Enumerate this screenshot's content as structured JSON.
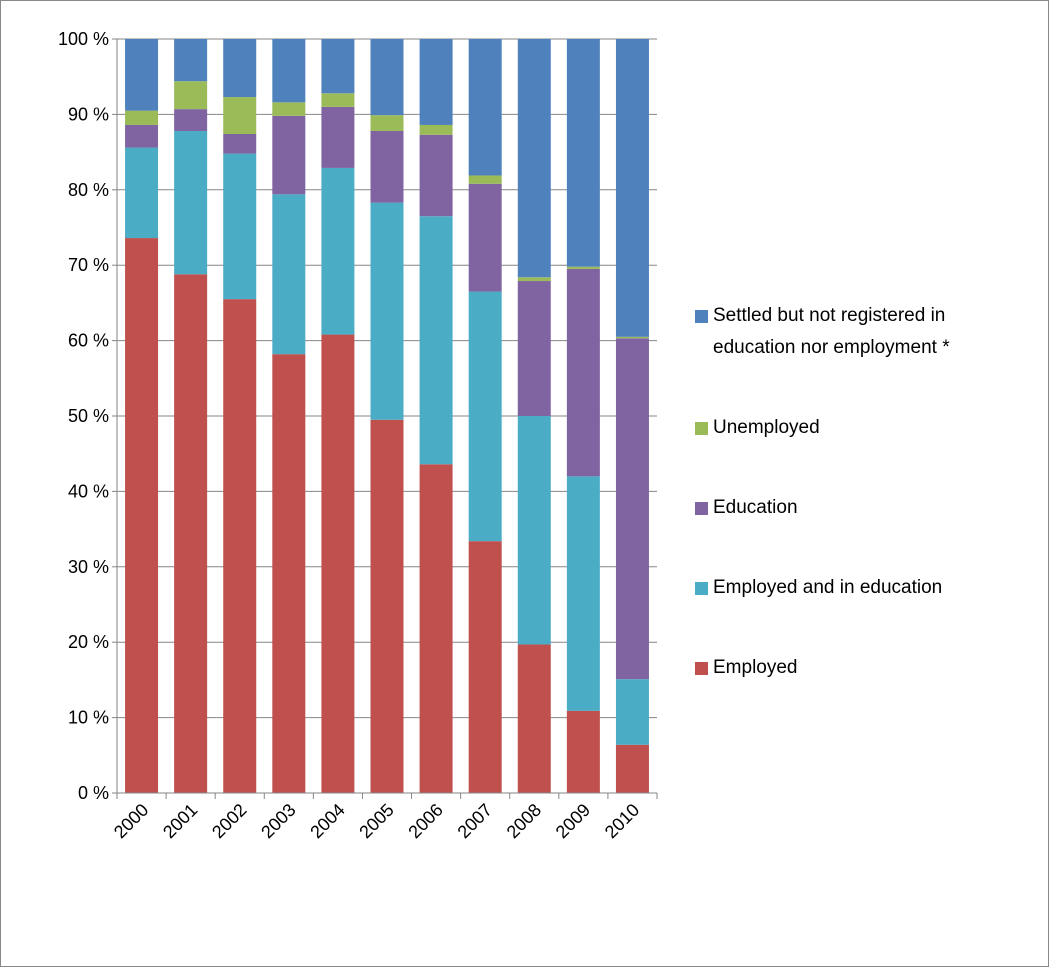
{
  "chart_data": {
    "type": "bar",
    "stacked": true,
    "categories": [
      "2000",
      "2001",
      "2002",
      "2003",
      "2004",
      "2005",
      "2006",
      "2007",
      "2008",
      "2009",
      "2010"
    ],
    "series": [
      {
        "name": "Employed",
        "color": "#c0504d",
        "values": [
          73.6,
          68.8,
          65.5,
          58.2,
          60.8,
          49.5,
          43.6,
          33.4,
          19.7,
          10.9,
          6.4
        ]
      },
      {
        "name": "Employed and in education",
        "color": "#4bacc6",
        "values": [
          12.0,
          19.0,
          19.3,
          21.2,
          22.1,
          28.8,
          32.9,
          33.1,
          30.3,
          31.1,
          8.7
        ]
      },
      {
        "name": "Education",
        "color": "#8064a2",
        "values": [
          3.0,
          2.9,
          2.6,
          10.4,
          8.1,
          9.5,
          10.8,
          14.3,
          17.9,
          27.5,
          45.2
        ]
      },
      {
        "name": "Unemployed",
        "color": "#9bbb59",
        "values": [
          1.9,
          3.7,
          4.9,
          1.8,
          1.8,
          2.1,
          1.3,
          1.1,
          0.5,
          0.3,
          0.2
        ]
      },
      {
        "name": "Settled but not registered in education nor employment *",
        "color": "#4f81bd",
        "values": [
          9.5,
          5.6,
          7.7,
          8.4,
          7.2,
          10.1,
          11.4,
          18.1,
          31.6,
          30.2,
          39.5
        ]
      }
    ],
    "ylim": [
      0,
      100
    ],
    "yticks": [
      {
        "value": 0,
        "label": "0 %"
      },
      {
        "value": 10,
        "label": "10 %"
      },
      {
        "value": 20,
        "label": "20 %"
      },
      {
        "value": 30,
        "label": "30 %"
      },
      {
        "value": 40,
        "label": "40 %"
      },
      {
        "value": 50,
        "label": "50 %"
      },
      {
        "value": 60,
        "label": "60 %"
      },
      {
        "value": 70,
        "label": "70 %"
      },
      {
        "value": 80,
        "label": "80 %"
      },
      {
        "value": 90,
        "label": "90 %"
      },
      {
        "value": 100,
        "label": "100 %"
      }
    ],
    "grid": true,
    "legend": "right"
  }
}
